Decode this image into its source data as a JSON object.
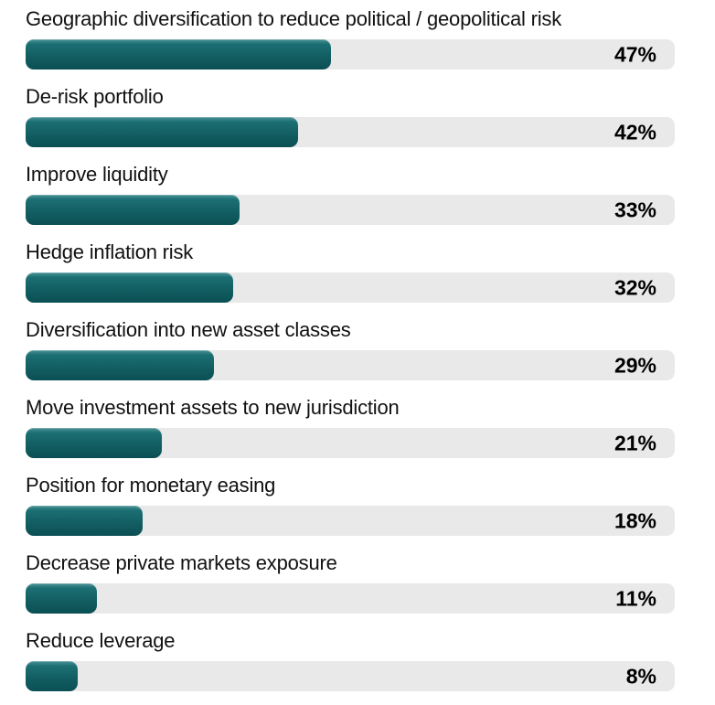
{
  "chart_data": {
    "type": "bar",
    "orientation": "horizontal",
    "title": "",
    "xlabel": "",
    "ylabel": "",
    "xlim": [
      0,
      100
    ],
    "grid": false,
    "legend": false,
    "value_suffix": "%",
    "categories": [
      "Geographic diversification to reduce political / geopolitical risk",
      "De-risk portfolio",
      "Improve liquidity",
      "Hedge inflation risk",
      "Diversification into new asset classes",
      "Move investment assets to new jurisdiction",
      "Position for monetary easing",
      "Decrease private markets exposure",
      "Reduce leverage"
    ],
    "values": [
      47,
      42,
      33,
      32,
      29,
      21,
      18,
      11,
      8
    ],
    "value_labels": [
      "47%",
      "42%",
      "33%",
      "32%",
      "29%",
      "21%",
      "18%",
      "11%",
      "8%"
    ],
    "colors": {
      "bar_gradient_top": "#4c9396",
      "bar_main": "#135f63",
      "bar_gradient_bottom": "#0a4f53",
      "track": "#e9e9e9",
      "category_text": "#111111",
      "value_text": "#000000",
      "background": "#ffffff"
    }
  }
}
